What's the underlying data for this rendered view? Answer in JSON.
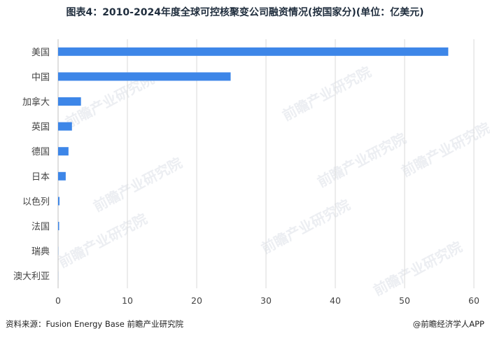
{
  "title": "图表4：2010-2024年度全球可控核聚变公司融资情况(按国家分)(单位：亿美元)",
  "footer": {
    "source": "资料来源：Fusion Energy Base 前瞻产业研究院",
    "brand": "@前瞻经济学人APP"
  },
  "watermark": "前瞻产业研究院",
  "colors": {
    "bar": "#3d86e8",
    "grid": "#d9d9d9",
    "axis_text": "#444444"
  },
  "chart_data": {
    "type": "bar",
    "orientation": "horizontal",
    "categories": [
      "美国",
      "中国",
      "加拿大",
      "英国",
      "德国",
      "日本",
      "以色列",
      "法国",
      "瑞典",
      "澳大利亚"
    ],
    "values": [
      56.3,
      24.9,
      3.3,
      2.0,
      1.5,
      1.1,
      0.2,
      0.15,
      0.02,
      0.01
    ],
    "xlim": [
      0,
      60
    ],
    "xticks": [
      0,
      10,
      20,
      30,
      40,
      50,
      60
    ],
    "grid": "vertical",
    "legend": "none"
  }
}
